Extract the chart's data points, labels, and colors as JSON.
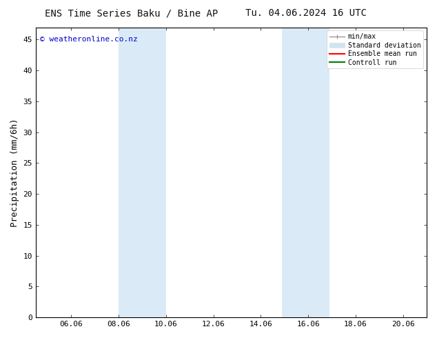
{
  "title_left": "ENS Time Series Baku / Bine AP",
  "title_right": "Tu. 04.06.2024 16 UTC",
  "ylabel": "Precipitation (mm/6h)",
  "xlabel": "",
  "ylim": [
    0,
    47
  ],
  "yticks": [
    0,
    5,
    10,
    15,
    20,
    25,
    30,
    35,
    40,
    45
  ],
  "xmin": 4.56,
  "xmax": 21.06,
  "xtick_positions": [
    6.06,
    8.06,
    10.06,
    12.06,
    14.06,
    16.06,
    18.06,
    20.06
  ],
  "xtick_labels": [
    "06.06",
    "08.06",
    "10.06",
    "12.06",
    "14.06",
    "16.06",
    "18.06",
    "20.06"
  ],
  "shaded_regions": [
    {
      "xmin": 8.06,
      "xmax": 10.06
    },
    {
      "xmin": 14.96,
      "xmax": 16.96
    }
  ],
  "shade_color": "#daeaf7",
  "bg_color": "#ffffff",
  "plot_bg_color": "#ffffff",
  "watermark": "© weatheronline.co.nz",
  "watermark_color": "#0000cc",
  "legend_items": [
    {
      "label": "min/max",
      "color": "#999999",
      "lw": 1.2
    },
    {
      "label": "Standard deviation",
      "color": "#d0e4f0",
      "lw": 8
    },
    {
      "label": "Ensemble mean run",
      "color": "#ff0000",
      "lw": 1.5
    },
    {
      "label": "Controll run",
      "color": "#008000",
      "lw": 1.5
    }
  ],
  "title_fontsize": 10,
  "axis_fontsize": 9,
  "tick_fontsize": 8,
  "watermark_fontsize": 8
}
